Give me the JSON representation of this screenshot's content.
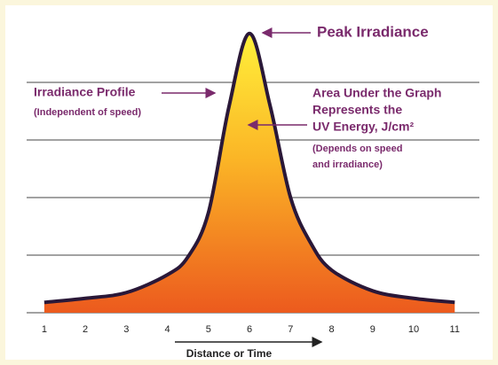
{
  "chart_data": {
    "type": "area",
    "x": [
      1,
      2,
      3,
      4,
      4.5,
      5,
      5.5,
      6,
      6.5,
      7,
      7.5,
      8,
      9,
      10,
      11
    ],
    "values": [
      0.18,
      0.25,
      0.35,
      0.66,
      0.97,
      1.74,
      3.58,
      4.85,
      3.6,
      2.0,
      1.2,
      0.74,
      0.38,
      0.25,
      0.18
    ],
    "xlim": [
      0.57,
      11.6
    ],
    "xticks": [
      1,
      2,
      3,
      4,
      5,
      6,
      7,
      8,
      9,
      10,
      11
    ],
    "ylim": [
      0,
      5
    ],
    "yticks": [
      0,
      1,
      2,
      3,
      4
    ],
    "grid": true,
    "xlabel": "Distance or Time",
    "annotations": {
      "peak": "Peak Irradiance",
      "profile": "Irradiance Profile",
      "profile_note": "(Independent of speed)",
      "area_1": "Area Under the Graph",
      "area_2": "Represents the",
      "area_3": "UV Energy, J/cm²",
      "area_note_1": "(Depends on speed",
      "area_note_2": "and irradiance)"
    }
  }
}
